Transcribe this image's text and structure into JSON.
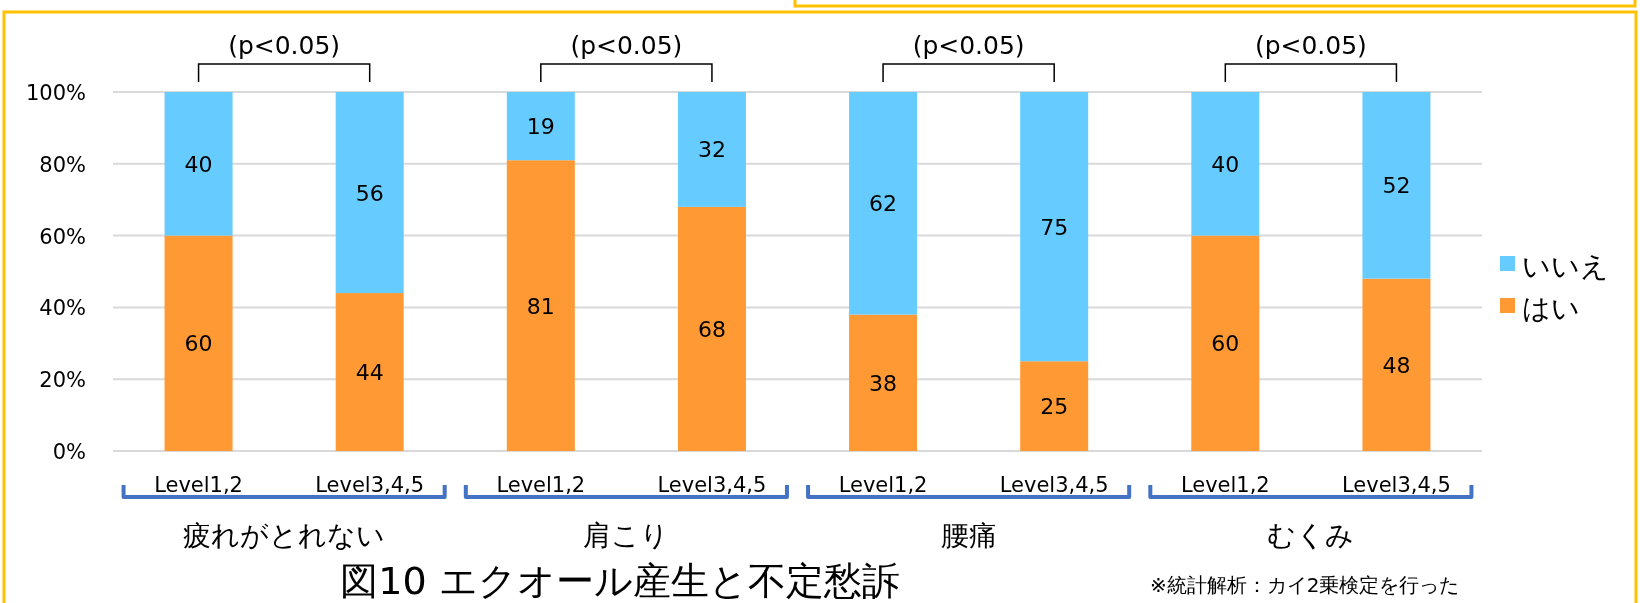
{
  "chart_data": {
    "type": "bar",
    "title": "図10 エクオール産生と不定愁訴",
    "stacked": true,
    "categories": [
      "Level1,2",
      "Level3,4,5",
      "Level1,2",
      "Level3,4,5",
      "Level1,2",
      "Level3,4,5",
      "Level1,2",
      "Level3,4,5"
    ],
    "series": [
      {
        "name": "はい",
        "color": "#ff9933",
        "values": [
          60,
          44,
          81,
          68,
          38,
          25,
          60,
          48
        ]
      },
      {
        "name": "いいえ",
        "color": "#66ccff",
        "values": [
          40,
          56,
          19,
          32,
          62,
          75,
          40,
          52
        ]
      }
    ],
    "ylim": [
      0,
      100
    ],
    "yticks": [
      {
        "value": 0,
        "label": "0%"
      },
      {
        "value": 20,
        "label": "20%"
      },
      {
        "value": 40,
        "label": "40%"
      },
      {
        "value": 60,
        "label": "60%"
      },
      {
        "value": 80,
        "label": "80%"
      },
      {
        "value": 100,
        "label": "100%"
      }
    ],
    "grid": "y",
    "legend": "right",
    "data_labels": true,
    "annotations": [
      "疲れがとれない",
      "肩こり",
      "腰痛",
      "むくみ",
      "(p<0.05)",
      "(p<0.05)",
      "(p<0.05)",
      "(p<0.05)",
      "※統計解析：カイ2乗検定を行った"
    ]
  }
}
